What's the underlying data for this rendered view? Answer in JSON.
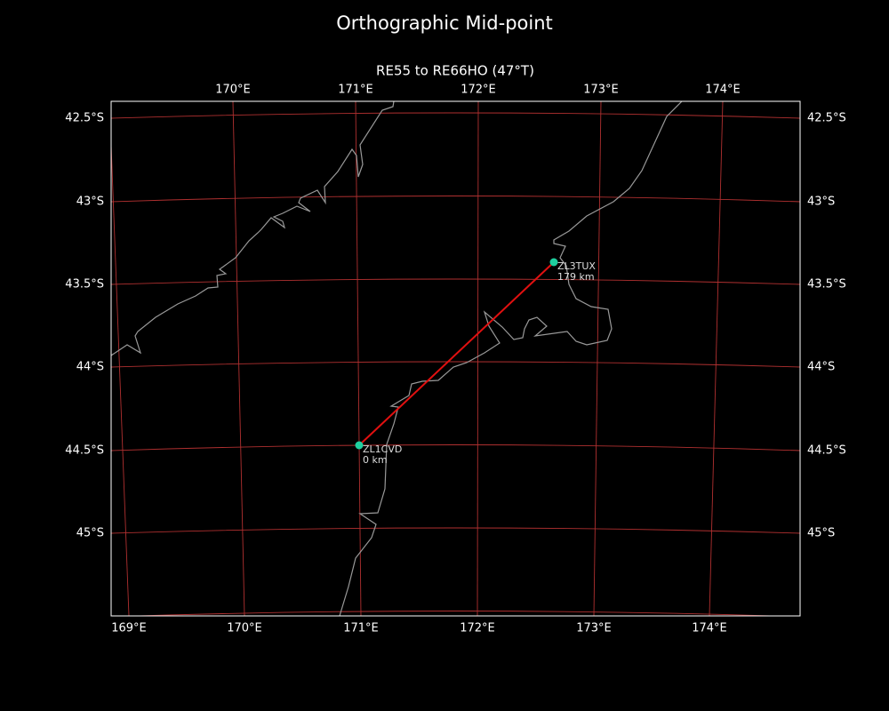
{
  "title": "Orthographic Mid-point",
  "subtitle": "RE55 to RE66HO (47°T)",
  "top_labels": [
    "170°E",
    "171°E",
    "172°E",
    "173°E",
    "174°E"
  ],
  "bottom_labels": [
    "169°E",
    "170°E",
    "171°E",
    "172°E",
    "173°E",
    "174°E"
  ],
  "left_labels": [
    "42.5°S",
    "43°S",
    "43.5°S",
    "44°S",
    "44.5°S",
    "45°S"
  ],
  "right_labels": [
    "42.5°S",
    "43°S",
    "43.5°S",
    "44°S",
    "44.5°S",
    "45°S"
  ],
  "stations": [
    {
      "call": "ZL1CVD",
      "distance": "0 km"
    },
    {
      "call": "ZL3TUX",
      "distance": "179 km"
    }
  ]
}
